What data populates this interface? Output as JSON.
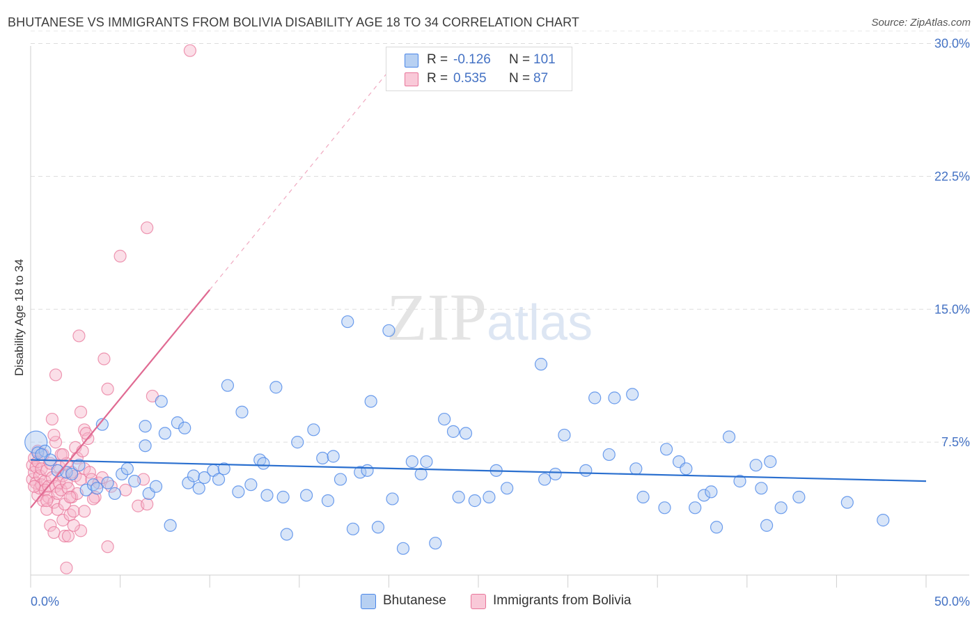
{
  "header": {
    "title": "BHUTANESE VS IMMIGRANTS FROM BOLIVIA DISABILITY AGE 18 TO 34 CORRELATION CHART",
    "source": "Source: ZipAtlas.com"
  },
  "watermark": {
    "zip": "ZIP",
    "atlas": "atlas"
  },
  "legend": {
    "rows": [
      {
        "r_label": "R =",
        "r_value": "-0.126",
        "n_label": "N =",
        "n_value": "101"
      },
      {
        "r_label": "R =",
        "r_value": "0.535",
        "n_label": "N =",
        "n_value": "87"
      }
    ]
  },
  "bottom_legend": {
    "series1": "Bhutanese",
    "series2": "Immigrants from Bolivia"
  },
  "chart_data": {
    "type": "scatter",
    "title": "BHUTANESE VS IMMIGRANTS FROM BOLIVIA DISABILITY AGE 18 TO 34 CORRELATION CHART",
    "xlabel": "",
    "ylabel": "Disability Age 18 to 34",
    "xlim": [
      0,
      50
    ],
    "ylim": [
      0,
      31
    ],
    "x_tick_labels": [
      "0.0%",
      "50.0%"
    ],
    "y_ticks": [
      7.5,
      15.0,
      22.5,
      30.0
    ],
    "y_tick_labels": [
      "7.5%",
      "15.0%",
      "22.5%",
      "30.0%"
    ],
    "colors": {
      "blue": "#4a86e8",
      "blue_fill": "#a9c6f0",
      "pink": "#e8759a",
      "pink_fill": "#f6b7cb",
      "blue_line": "#2a6fcf",
      "pink_line": "#e06a92",
      "tick_text": "#4472c4"
    },
    "series": [
      {
        "name": "Bhutanese",
        "R": -0.126,
        "N": 101,
        "trend": {
          "x": [
            0,
            50
          ],
          "y": [
            6.5,
            5.3
          ]
        },
        "points": [
          [
            0.3,
            7.5
          ],
          [
            0.4,
            6.9
          ],
          [
            0.8,
            7.0
          ],
          [
            1.1,
            6.5
          ],
          [
            1.5,
            5.9
          ],
          [
            2.0,
            5.8
          ],
          [
            2.3,
            5.7
          ],
          [
            2.7,
            6.2
          ],
          [
            3.1,
            4.8
          ],
          [
            3.5,
            5.1
          ],
          [
            3.7,
            4.9
          ],
          [
            4.0,
            8.5
          ],
          [
            4.3,
            5.2
          ],
          [
            4.7,
            4.6
          ],
          [
            5.1,
            5.7
          ],
          [
            5.4,
            6.0
          ],
          [
            5.8,
            5.3
          ],
          [
            6.4,
            8.4
          ],
          [
            6.4,
            7.3
          ],
          [
            6.6,
            4.6
          ],
          [
            7.0,
            5.0
          ],
          [
            7.3,
            9.8
          ],
          [
            7.5,
            8.0
          ],
          [
            7.8,
            2.8
          ],
          [
            8.2,
            8.6
          ],
          [
            8.6,
            8.3
          ],
          [
            8.8,
            5.2
          ],
          [
            9.1,
            5.6
          ],
          [
            9.4,
            4.9
          ],
          [
            9.7,
            5.5
          ],
          [
            10.2,
            5.9
          ],
          [
            10.5,
            5.4
          ],
          [
            10.8,
            6.0
          ],
          [
            11.0,
            10.7
          ],
          [
            11.6,
            4.7
          ],
          [
            11.8,
            9.2
          ],
          [
            12.3,
            5.1
          ],
          [
            12.8,
            6.5
          ],
          [
            13.0,
            6.3
          ],
          [
            13.2,
            4.5
          ],
          [
            13.7,
            10.6
          ],
          [
            14.1,
            4.4
          ],
          [
            14.3,
            2.3
          ],
          [
            14.9,
            7.5
          ],
          [
            15.4,
            4.5
          ],
          [
            15.8,
            8.2
          ],
          [
            16.3,
            6.6
          ],
          [
            16.6,
            4.2
          ],
          [
            16.9,
            6.7
          ],
          [
            17.3,
            5.4
          ],
          [
            17.7,
            14.3
          ],
          [
            18.0,
            2.6
          ],
          [
            18.4,
            5.8
          ],
          [
            18.8,
            5.9
          ],
          [
            19.0,
            9.8
          ],
          [
            19.4,
            2.7
          ],
          [
            20.0,
            13.8
          ],
          [
            20.2,
            4.3
          ],
          [
            20.8,
            1.5
          ],
          [
            21.3,
            6.4
          ],
          [
            21.8,
            5.7
          ],
          [
            22.1,
            6.4
          ],
          [
            22.6,
            1.8
          ],
          [
            23.1,
            8.8
          ],
          [
            23.6,
            8.1
          ],
          [
            23.9,
            4.4
          ],
          [
            24.3,
            8.0
          ],
          [
            24.8,
            4.2
          ],
          [
            25.6,
            4.4
          ],
          [
            26.0,
            5.9
          ],
          [
            26.6,
            4.9
          ],
          [
            28.5,
            11.9
          ],
          [
            28.7,
            5.4
          ],
          [
            29.3,
            5.7
          ],
          [
            29.8,
            7.9
          ],
          [
            31.0,
            5.9
          ],
          [
            31.5,
            10.0
          ],
          [
            32.3,
            6.8
          ],
          [
            32.6,
            10.0
          ],
          [
            33.6,
            10.2
          ],
          [
            33.8,
            6.0
          ],
          [
            34.2,
            4.4
          ],
          [
            35.4,
            3.8
          ],
          [
            35.5,
            7.1
          ],
          [
            36.2,
            6.4
          ],
          [
            36.6,
            6.0
          ],
          [
            37.1,
            3.8
          ],
          [
            37.6,
            4.5
          ],
          [
            38.0,
            4.7
          ],
          [
            38.3,
            2.7
          ],
          [
            39.0,
            7.8
          ],
          [
            39.6,
            5.3
          ],
          [
            40.5,
            6.2
          ],
          [
            40.8,
            4.9
          ],
          [
            41.1,
            2.8
          ],
          [
            41.3,
            6.4
          ],
          [
            41.9,
            3.8
          ],
          [
            42.9,
            4.4
          ],
          [
            45.6,
            4.1
          ],
          [
            47.6,
            3.1
          ],
          [
            0.6,
            6.8
          ]
        ]
      },
      {
        "name": "Immigrants from Bolivia",
        "R": 0.535,
        "N": 87,
        "trend": {
          "x": [
            0,
            10
          ],
          "y": [
            3.8,
            16.1
          ]
        },
        "trend_dashed": {
          "x": [
            10,
            20.2
          ],
          "y": [
            16.1,
            28.7
          ]
        },
        "points": [
          [
            0.1,
            6.2
          ],
          [
            0.1,
            5.4
          ],
          [
            0.2,
            6.6
          ],
          [
            0.2,
            5.8
          ],
          [
            0.3,
            6.1
          ],
          [
            0.3,
            5.2
          ],
          [
            0.4,
            4.5
          ],
          [
            0.4,
            6.4
          ],
          [
            0.5,
            5.6
          ],
          [
            0.5,
            4.9
          ],
          [
            0.6,
            6.0
          ],
          [
            0.6,
            5.1
          ],
          [
            0.7,
            4.2
          ],
          [
            0.7,
            6.8
          ],
          [
            0.8,
            5.3
          ],
          [
            0.8,
            4.8
          ],
          [
            0.9,
            5.9
          ],
          [
            0.9,
            3.7
          ],
          [
            1.0,
            5.0
          ],
          [
            1.0,
            4.4
          ],
          [
            1.1,
            6.3
          ],
          [
            1.1,
            2.8
          ],
          [
            1.2,
            8.8
          ],
          [
            1.2,
            5.5
          ],
          [
            1.3,
            4.1
          ],
          [
            1.3,
            2.4
          ],
          [
            1.4,
            7.5
          ],
          [
            1.4,
            5.0
          ],
          [
            1.4,
            11.3
          ],
          [
            1.5,
            4.6
          ],
          [
            1.5,
            3.7
          ],
          [
            1.6,
            6.1
          ],
          [
            1.6,
            5.2
          ],
          [
            1.7,
            4.8
          ],
          [
            1.7,
            6.8
          ],
          [
            1.8,
            3.1
          ],
          [
            1.8,
            5.6
          ],
          [
            1.9,
            4.0
          ],
          [
            1.9,
            2.2
          ],
          [
            2.0,
            6.3
          ],
          [
            2.0,
            5.2
          ],
          [
            2.0,
            0.4
          ],
          [
            2.1,
            4.9
          ],
          [
            2.1,
            2.2
          ],
          [
            2.2,
            3.4
          ],
          [
            2.3,
            5.8
          ],
          [
            2.3,
            4.4
          ],
          [
            2.4,
            3.6
          ],
          [
            2.5,
            5.6
          ],
          [
            2.5,
            7.2
          ],
          [
            2.6,
            6.6
          ],
          [
            2.6,
            4.6
          ],
          [
            2.7,
            13.5
          ],
          [
            2.8,
            5.4
          ],
          [
            2.8,
            9.2
          ],
          [
            2.8,
            2.5
          ],
          [
            2.9,
            7.0
          ],
          [
            3.0,
            8.2
          ],
          [
            3.0,
            6.0
          ],
          [
            3.0,
            3.6
          ],
          [
            3.2,
            7.7
          ],
          [
            3.3,
            5.8
          ],
          [
            3.4,
            5.4
          ],
          [
            3.6,
            4.4
          ],
          [
            3.8,
            5.2
          ],
          [
            4.0,
            5.5
          ],
          [
            4.1,
            12.2
          ],
          [
            4.3,
            10.5
          ],
          [
            4.3,
            1.6
          ],
          [
            4.5,
            5.0
          ],
          [
            5.0,
            18.0
          ],
          [
            6.0,
            3.9
          ],
          [
            6.3,
            5.4
          ],
          [
            6.5,
            4.0
          ],
          [
            6.5,
            19.6
          ],
          [
            6.8,
            10.1
          ],
          [
            8.9,
            29.6
          ],
          [
            0.2,
            5.0
          ],
          [
            0.4,
            7.0
          ],
          [
            0.9,
            4.2
          ],
          [
            1.3,
            7.9
          ],
          [
            1.8,
            6.8
          ],
          [
            2.2,
            4.4
          ],
          [
            2.4,
            2.8
          ],
          [
            3.1,
            8.0
          ],
          [
            3.5,
            4.3
          ],
          [
            5.3,
            4.8
          ]
        ]
      }
    ]
  }
}
